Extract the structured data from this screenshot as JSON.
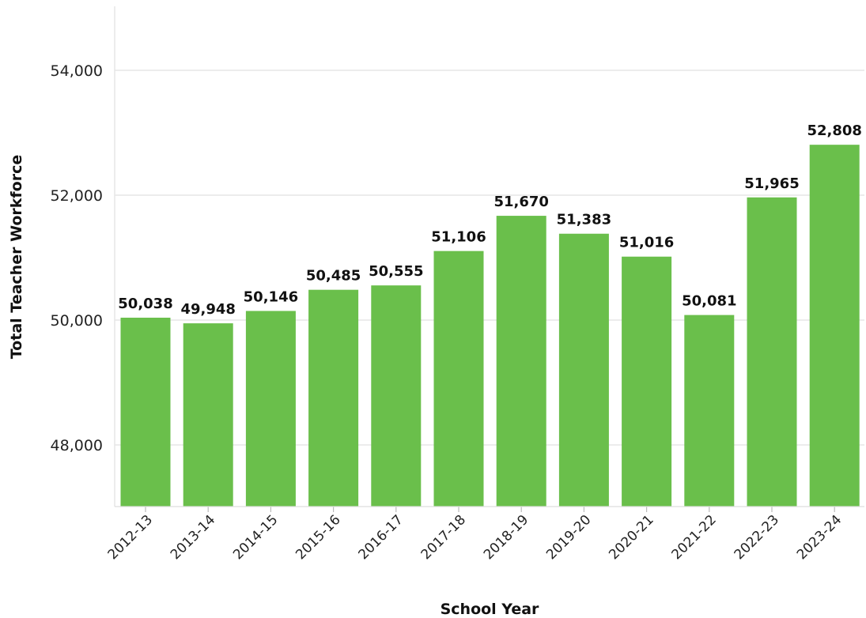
{
  "chart_data": {
    "type": "bar",
    "title": "",
    "xlabel": "School Year",
    "ylabel": "Total Teacher Workforce",
    "categories": [
      "2012-13",
      "2013-14",
      "2014-15",
      "2015-16",
      "2016-17",
      "2017-18",
      "2018-19",
      "2019-20",
      "2020-21",
      "2021-22",
      "2022-23",
      "2023-24"
    ],
    "values": [
      50038,
      49948,
      50146,
      50485,
      50555,
      51106,
      51670,
      51383,
      51016,
      50081,
      51965,
      52808
    ],
    "value_labels": [
      "50,038",
      "49,948",
      "50,146",
      "50,485",
      "50,555",
      "51,106",
      "51,670",
      "51,383",
      "51,016",
      "50,081",
      "51,965",
      "52,808"
    ],
    "ylim": [
      47000,
      55000
    ],
    "yticks": [
      48000,
      50000,
      52000,
      54000
    ],
    "ytick_labels": [
      "48,000",
      "50,000",
      "52,000",
      "54,000"
    ],
    "grid": true,
    "legend": "none",
    "bar_color": "#6abf4b",
    "grid_color": "#e6e6e6"
  }
}
